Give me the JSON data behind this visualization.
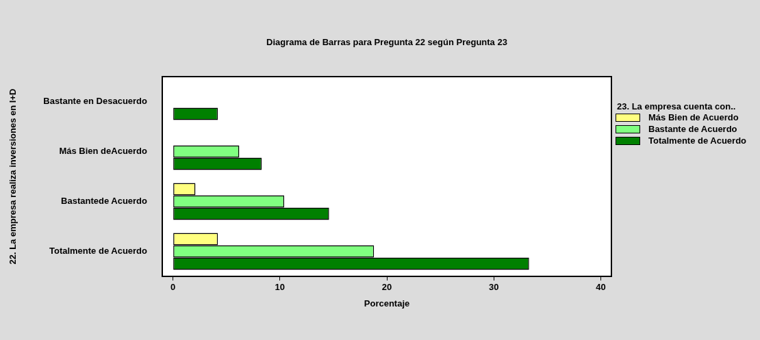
{
  "chart_data": {
    "type": "bar",
    "orientation": "horizontal",
    "title": "Diagrama de Barras para Pregunta 22 según Pregunta 23",
    "xlabel": "Porcentaje",
    "ylabel": "22. La empresa realiza inversiones en I+D",
    "legend_title": "23. La empresa cuenta con..",
    "legend": "right",
    "categories": [
      "Bastante en Desacuerdo",
      "Más Bien deAcuerdo",
      "Bastantede Acuerdo",
      "Totalmente de Acuerdo"
    ],
    "series": [
      {
        "name": "Más Bien de Acuerdo",
        "color": "#ffff80",
        "values": [
          0,
          0,
          2.1,
          4.2
        ]
      },
      {
        "name": "Bastante de Acuerdo",
        "color": "#80ff80",
        "values": [
          0,
          6.2,
          10.4,
          18.8
        ]
      },
      {
        "name": "Totalmente de Acuerdo",
        "color": "#008000",
        "values": [
          4.2,
          8.3,
          14.6,
          33.3
        ]
      }
    ],
    "xlim": [
      -1,
      41
    ],
    "xticks": [
      0,
      10,
      20,
      30,
      40
    ]
  }
}
